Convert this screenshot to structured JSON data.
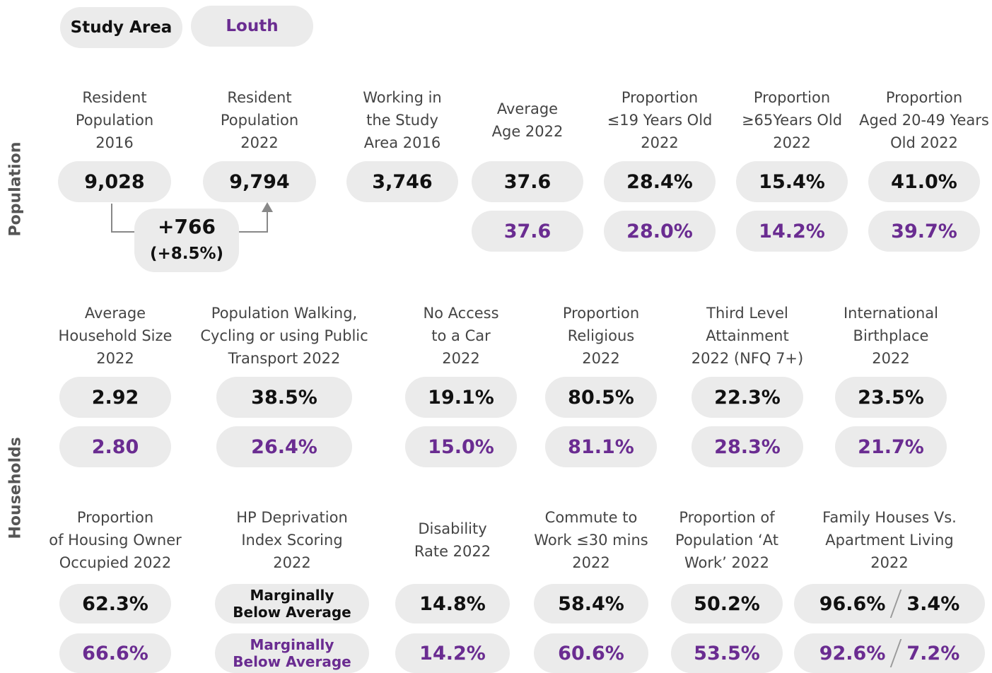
{
  "legend": {
    "study_area": "Study Area",
    "comparison": "Louth"
  },
  "side_labels": [
    "Population",
    "Households"
  ],
  "change": {
    "value": "+766",
    "percent": "(+8.5%)"
  },
  "rows": [
    [
      {
        "label": [
          "Resident",
          "Population",
          "2016"
        ],
        "study": "9,028"
      },
      {
        "label": [
          "Resident",
          "Population",
          "2022"
        ],
        "study": "9,794"
      },
      {
        "label": [
          "Working in",
          "the Study",
          "Area 2016"
        ],
        "study": "3,746"
      },
      {
        "label": [
          "Average",
          "Age 2022"
        ],
        "study": "37.6",
        "louth": "37.6"
      },
      {
        "label": [
          "Proportion",
          "≤19 Years Old",
          "2022"
        ],
        "study": "28.4%",
        "louth": "28.0%"
      },
      {
        "label": [
          "Proportion",
          "≥65Years Old",
          "2022"
        ],
        "study": "15.4%",
        "louth": "14.2%"
      },
      {
        "label": [
          "Proportion",
          "Aged 20-49 Years",
          "Old 2022"
        ],
        "study": "41.0%",
        "louth": "39.7%"
      }
    ],
    [
      {
        "label": [
          "Average",
          "Household Size",
          "2022"
        ],
        "study": "2.92",
        "louth": "2.80"
      },
      {
        "label": [
          "Population Walking,",
          "Cycling or using Public",
          "Transport 2022"
        ],
        "study": "38.5%",
        "louth": "26.4%"
      },
      {
        "label": [
          "No Access",
          "to a Car",
          "2022"
        ],
        "study": "19.1%",
        "louth": "15.0%"
      },
      {
        "label": [
          "Proportion",
          "Religious",
          "2022"
        ],
        "study": "80.5%",
        "louth": "81.1%"
      },
      {
        "label": [
          "Third Level",
          "Attainment",
          "2022 (NFQ 7+)"
        ],
        "study": "22.3%",
        "louth": "28.3%"
      },
      {
        "label": [
          "International",
          "Birthplace",
          "2022"
        ],
        "study": "23.5%",
        "louth": "21.7%"
      }
    ],
    [
      {
        "label": [
          "Proportion",
          "of Housing Owner",
          "Occupied 2022"
        ],
        "study": "62.3%",
        "louth": "66.6%"
      },
      {
        "label": [
          "HP Deprivation",
          "Index Scoring",
          "2022"
        ],
        "study": "Marginally Below Average",
        "louth": "Marginally Below Average"
      },
      {
        "label": [
          "Disability",
          "Rate 2022"
        ],
        "study": "14.8%",
        "louth": "14.2%"
      },
      {
        "label": [
          "Commute to",
          "Work ≤30 mins",
          "2022"
        ],
        "study": "58.4%",
        "louth": "60.6%"
      },
      {
        "label": [
          "Proportion of",
          "Population ‘At",
          "Work’ 2022"
        ],
        "study": "50.2%",
        "louth": "53.5%"
      },
      {
        "label": [
          "Family Houses Vs.",
          "Apartment Living",
          "2022"
        ],
        "study": [
          "96.6%",
          "3.4%"
        ],
        "louth": [
          "92.6%",
          "7.2%"
        ]
      }
    ]
  ]
}
